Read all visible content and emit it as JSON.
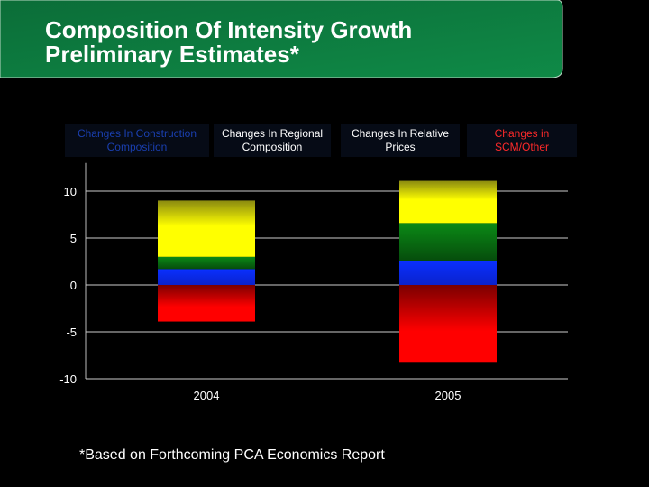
{
  "slide": {
    "title_line1": "Composition Of Intensity Growth",
    "title_line2": "Preliminary Estimates*",
    "footnote": "*Based on Forthcoming PCA Economics Report"
  },
  "legend": [
    {
      "label_line1": "Changes In Construction",
      "label_line2": "Composition",
      "color": "#1a3fb0"
    },
    {
      "label_line1": "Changes In Regional",
      "label_line2": "Composition",
      "color": "#ffffff"
    },
    {
      "label_line1": "Changes In Relative",
      "label_line2": "Prices",
      "color": "#ffffff"
    },
    {
      "label_line1": "Changes in",
      "label_line2": "SCM/Other",
      "color": "#ff2a2a"
    }
  ],
  "colors": {
    "header_green": "#0e7a3f",
    "construction": "#0a2cff",
    "regional": "#0a7a14",
    "prices": "#ffff00",
    "scm_other": "#ff0000"
  },
  "chart_data": {
    "type": "bar",
    "stacked": true,
    "categories": [
      "2004",
      "2005"
    ],
    "series": [
      {
        "name": "Changes In Construction Composition",
        "values": [
          1.7,
          2.6
        ]
      },
      {
        "name": "Changes In Regional Composition",
        "values": [
          1.3,
          4.0
        ]
      },
      {
        "name": "Changes In Relative Prices",
        "values": [
          6.0,
          4.5
        ]
      },
      {
        "name": "Changes in SCM/Other",
        "values": [
          -3.9,
          -8.2
        ]
      }
    ],
    "yticks": [
      10,
      5,
      0,
      -5,
      -10
    ],
    "ylim": [
      -10,
      13
    ],
    "grid": true,
    "legend_position": "top"
  }
}
